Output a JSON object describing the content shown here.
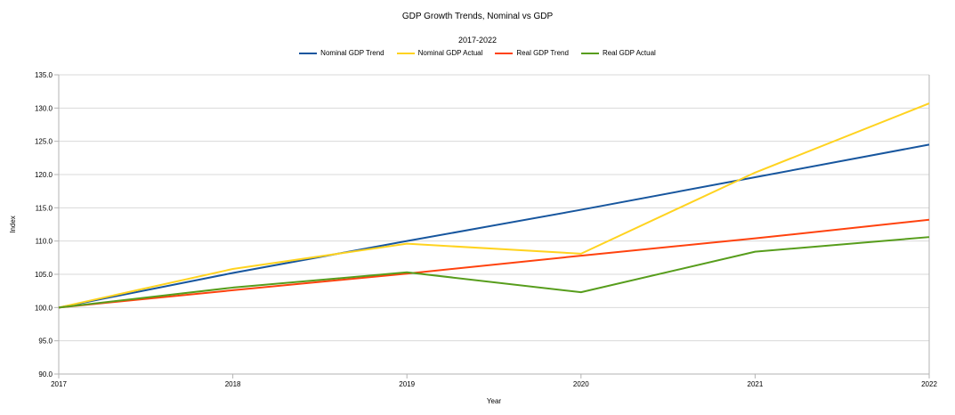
{
  "chart": {
    "title": "GDP Growth Trends, Nominal vs GDP",
    "subtitle": "2017-2022"
  },
  "chart_data": {
    "type": "line",
    "title": "GDP Growth Trends, Nominal vs GDP",
    "subtitle": "2017-2022",
    "xlabel": "Year",
    "ylabel": "Index",
    "x": [
      2017,
      2018,
      2019,
      2020,
      2021,
      2022
    ],
    "series": [
      {
        "name": "Nominal GDP Trend",
        "color": "#17569E",
        "values": [
          100.0,
          105.2,
          110.0,
          114.7,
          119.6,
          124.5
        ]
      },
      {
        "name": "Nominal GDP Actual",
        "color": "#FFD320",
        "values": [
          100.0,
          105.8,
          109.6,
          108.1,
          120.3,
          130.7
        ]
      },
      {
        "name": "Real GDP Trend",
        "color": "#FF420E",
        "values": [
          100.0,
          102.6,
          105.1,
          107.8,
          110.4,
          113.2
        ]
      },
      {
        "name": "Real GDP Actual",
        "color": "#579D1C",
        "values": [
          100.0,
          103.0,
          105.3,
          102.3,
          108.4,
          110.6
        ]
      }
    ],
    "ylim": [
      90,
      135
    ],
    "ytick_step": 5,
    "ytick_decimals": 1,
    "grid": true,
    "legend_position": "top",
    "colors": {
      "gridline": "#D9D9D9",
      "axis": "#B3B3B3",
      "text": "#000000",
      "background": "#FFFFFF"
    }
  }
}
